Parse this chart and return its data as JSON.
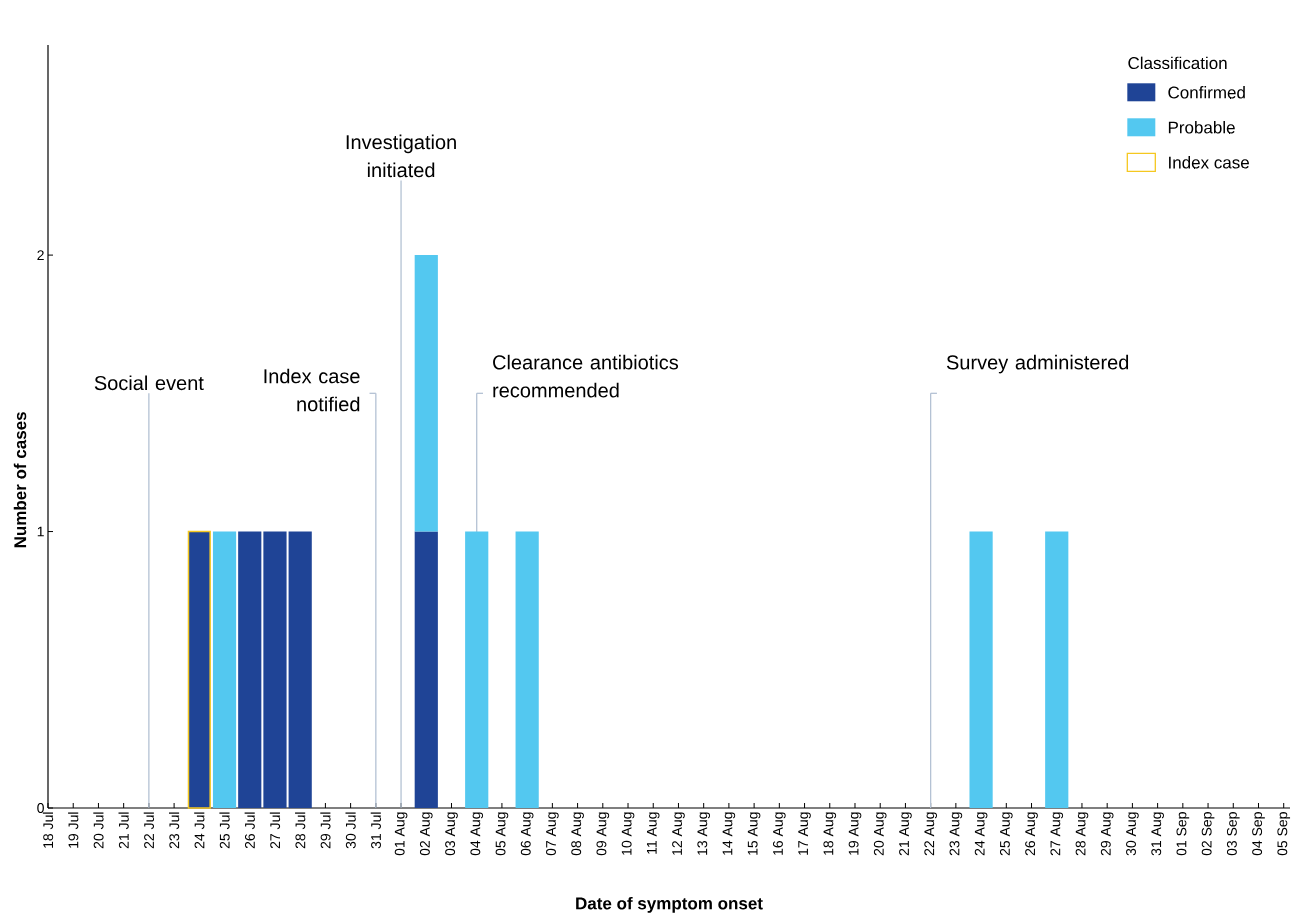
{
  "chart_data": {
    "type": "bar",
    "stacked": true,
    "xlabel": "Date of symptom onset",
    "ylabel": "Number of cases",
    "legend_title": "Classification",
    "legend": "top right",
    "categories": [
      "18 Jul",
      "19 Jul",
      "20 Jul",
      "21 Jul",
      "22 Jul",
      "23 Jul",
      "24 Jul",
      "25 Jul",
      "26 Jul",
      "27 Jul",
      "28 Jul",
      "29 Jul",
      "30 Jul",
      "31 Jul",
      "01 Aug",
      "02 Aug",
      "03 Aug",
      "04 Aug",
      "05 Aug",
      "06 Aug",
      "07 Aug",
      "08 Aug",
      "09 Aug",
      "10 Aug",
      "11 Aug",
      "12 Aug",
      "13 Aug",
      "14 Aug",
      "15 Aug",
      "16 Aug",
      "17 Aug",
      "18 Aug",
      "19 Aug",
      "20 Aug",
      "21 Aug",
      "22 Aug",
      "23 Aug",
      "24 Aug",
      "25 Aug",
      "26 Aug",
      "27 Aug",
      "28 Aug",
      "29 Aug",
      "30 Aug",
      "31 Aug",
      "01 Sep",
      "02 Sep",
      "03 Sep",
      "04 Sep",
      "05 Sep"
    ],
    "series": [
      {
        "name": "Confirmed",
        "color": "#1f4496",
        "values": [
          null,
          null,
          null,
          null,
          null,
          null,
          null,
          null,
          1,
          1,
          1,
          null,
          null,
          null,
          null,
          1,
          null,
          null,
          null,
          null,
          null,
          null,
          null,
          null,
          null,
          null,
          null,
          null,
          null,
          null,
          null,
          null,
          null,
          null,
          null,
          null,
          null,
          null,
          null,
          null,
          null,
          null,
          null,
          null,
          null,
          null,
          null,
          null,
          null,
          null
        ]
      },
      {
        "name": "Probable",
        "color": "#53c8f0",
        "values": [
          null,
          null,
          null,
          null,
          null,
          null,
          null,
          1,
          null,
          null,
          null,
          null,
          null,
          null,
          null,
          1,
          null,
          1,
          null,
          1,
          null,
          null,
          null,
          null,
          null,
          null,
          null,
          null,
          null,
          null,
          null,
          null,
          null,
          null,
          null,
          null,
          null,
          1,
          null,
          null,
          1,
          null,
          null,
          null,
          null,
          null,
          null,
          null,
          null,
          null
        ]
      },
      {
        "name": "Index case",
        "color": "#f5c820",
        "values": [
          null,
          null,
          null,
          null,
          null,
          null,
          1,
          null,
          null,
          null,
          null,
          null,
          null,
          null,
          null,
          null,
          null,
          null,
          null,
          null,
          null,
          null,
          null,
          null,
          null,
          null,
          null,
          null,
          null,
          null,
          null,
          null,
          null,
          null,
          null,
          null,
          null,
          null,
          null,
          null,
          null,
          null,
          null,
          null,
          null,
          null,
          null,
          null,
          null,
          null
        ]
      }
    ],
    "ylim": [
      0,
      2.76
    ],
    "yticks": [
      0,
      1,
      2
    ],
    "ref_lines": [
      {
        "axis": "x",
        "value": "22 Jul",
        "label": "Social event",
        "color": "#b4c2d4"
      },
      {
        "axis": "x",
        "value": "31 Jul",
        "label": "Index case notified",
        "color": "#b4c2d4"
      },
      {
        "axis": "x",
        "value": "01 Aug",
        "label": "Investigation initiated",
        "color": "#b4c2d4"
      },
      {
        "axis": "x",
        "value": "04 Aug",
        "label": "Clearance antibiotics recommended",
        "color": "#b4c2d4"
      },
      {
        "axis": "x",
        "value": "22 Aug",
        "label": "Survey administered",
        "color": "#b4c2d4"
      }
    ]
  }
}
